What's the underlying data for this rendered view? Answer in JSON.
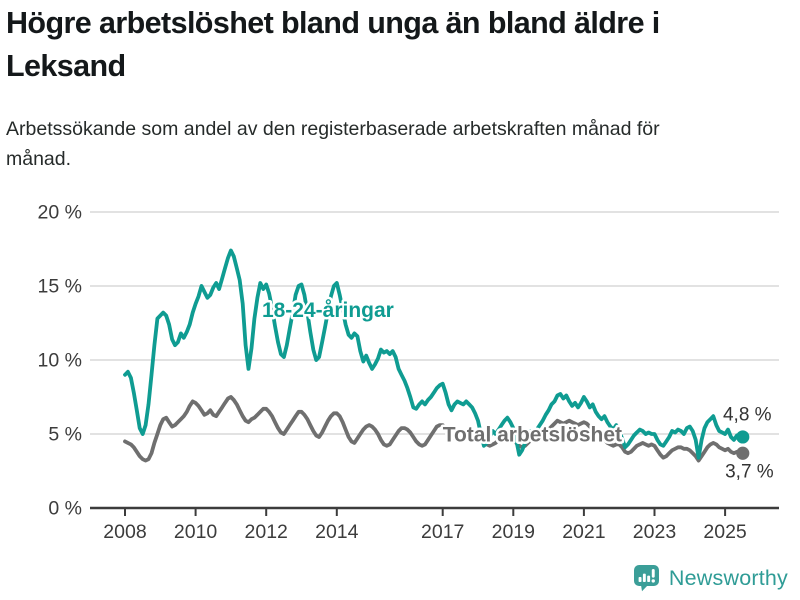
{
  "header": {
    "title": "Högre arbetslöshet bland unga än bland äldre i Leksand",
    "subtitle": "Arbetssökande som andel av den registerbaserade arbetskraften månad för månad."
  },
  "footer": {
    "brand": "Newsworthy"
  },
  "colors": {
    "young": "#0f9c92",
    "total": "#6f6f6f",
    "axis": "#3c3c3c",
    "grid": "#d9d9d9",
    "value_text": "#333333",
    "brand": "#2f9c96"
  },
  "chart_data": {
    "type": "line",
    "title": "Högre arbetslöshet bland unga än bland äldre i Leksand",
    "subtitle": "Arbetssökande som andel av den registerbaserade arbetskraften månad för månad.",
    "x_unit": "month",
    "x_start_year": 2008.0,
    "x_end_year": 2025.5,
    "ylim": [
      0,
      20
    ],
    "grid": "horizontal",
    "legend_position": "inline-annotations",
    "y_ticks": [
      0,
      5,
      10,
      15,
      20
    ],
    "y_tick_labels": [
      "0 %",
      "5 %",
      "10 %",
      "15 %",
      "20 %"
    ],
    "x_ticks": [
      2008,
      2010,
      2012,
      2014,
      2017,
      2019,
      2021,
      2023,
      2025
    ],
    "x_tick_labels": [
      "2008",
      "2010",
      "2012",
      "2014",
      "2017",
      "2019",
      "2021",
      "2023",
      "2025"
    ],
    "series": [
      {
        "name": "18-24-åringar",
        "color": "#0f9c92",
        "end_label": "4,8 %",
        "end_value": 4.8,
        "values": [
          9.0,
          9.2,
          8.8,
          7.8,
          6.6,
          5.4,
          5.0,
          5.6,
          7.0,
          9.0,
          11.0,
          12.8,
          13.0,
          13.2,
          13.0,
          12.4,
          11.4,
          11.0,
          11.2,
          11.8,
          11.5,
          11.9,
          12.4,
          13.2,
          13.8,
          14.3,
          15.0,
          14.6,
          14.2,
          14.4,
          14.9,
          15.2,
          14.8,
          15.5,
          16.2,
          16.9,
          17.4,
          17.0,
          16.2,
          15.4,
          13.8,
          11.0,
          9.4,
          10.8,
          12.8,
          14.2,
          15.2,
          14.8,
          15.1,
          14.5,
          13.5,
          12.3,
          11.2,
          10.4,
          10.2,
          11.0,
          12.1,
          13.2,
          14.4,
          15.0,
          15.1,
          14.4,
          13.2,
          11.9,
          10.7,
          10.0,
          10.2,
          11.2,
          12.2,
          13.3,
          14.3,
          15.0,
          15.2,
          14.4,
          13.4,
          12.4,
          11.7,
          11.5,
          11.8,
          11.6,
          10.6,
          9.9,
          10.3,
          9.8,
          9.4,
          9.7,
          10.1,
          10.7,
          10.5,
          10.6,
          10.4,
          10.6,
          10.2,
          9.4,
          9.0,
          8.6,
          8.1,
          7.5,
          6.8,
          6.7,
          7.0,
          7.2,
          7.0,
          7.3,
          7.5,
          7.8,
          8.1,
          8.3,
          8.4,
          7.8,
          7.0,
          6.6,
          7.0,
          7.2,
          7.1,
          7.0,
          7.2,
          7.0,
          6.8,
          6.4,
          5.9,
          5.0,
          4.2,
          4.4,
          4.8,
          5.2,
          5.0,
          5.3,
          5.6,
          5.9,
          6.1,
          5.8,
          5.4,
          4.6,
          3.6,
          3.9,
          4.4,
          4.8,
          5.2,
          5.0,
          5.3,
          5.6,
          5.9,
          6.3,
          6.6,
          7.0,
          7.2,
          7.6,
          7.7,
          7.4,
          7.6,
          7.2,
          6.9,
          7.1,
          6.8,
          7.1,
          7.5,
          7.2,
          6.8,
          7.0,
          6.5,
          6.2,
          6.0,
          6.2,
          5.8,
          5.5,
          5.3,
          5.6,
          5.2,
          4.7,
          4.1,
          4.3,
          4.6,
          4.9,
          5.1,
          5.3,
          5.2,
          5.0,
          5.1,
          5.0,
          5.0,
          4.6,
          4.3,
          4.2,
          4.5,
          4.8,
          5.2,
          5.1,
          5.3,
          5.2,
          5.0,
          5.4,
          5.5,
          5.2,
          4.6,
          3.4,
          4.6,
          5.4,
          5.8,
          6.0,
          6.2,
          5.6,
          5.2,
          5.1,
          5.0,
          5.3,
          4.8,
          4.6,
          4.9,
          4.7,
          4.8
        ]
      },
      {
        "name": "Total arbetslöshet",
        "color": "#6f6f6f",
        "end_label": "3,7 %",
        "end_value": 3.7,
        "values": [
          4.5,
          4.4,
          4.3,
          4.1,
          3.8,
          3.5,
          3.3,
          3.2,
          3.3,
          3.7,
          4.4,
          5.0,
          5.6,
          6.0,
          6.1,
          5.8,
          5.5,
          5.6,
          5.8,
          6.0,
          6.2,
          6.5,
          6.9,
          7.2,
          7.1,
          6.9,
          6.6,
          6.3,
          6.4,
          6.6,
          6.3,
          6.2,
          6.5,
          6.8,
          7.1,
          7.4,
          7.5,
          7.3,
          7.0,
          6.6,
          6.2,
          5.9,
          5.8,
          6.0,
          6.1,
          6.3,
          6.5,
          6.7,
          6.7,
          6.5,
          6.2,
          5.8,
          5.4,
          5.1,
          5.0,
          5.3,
          5.6,
          5.9,
          6.2,
          6.5,
          6.5,
          6.3,
          6.0,
          5.6,
          5.2,
          4.9,
          4.8,
          5.1,
          5.5,
          5.9,
          6.2,
          6.4,
          6.4,
          6.2,
          5.8,
          5.3,
          4.8,
          4.5,
          4.4,
          4.7,
          5.0,
          5.3,
          5.5,
          5.6,
          5.5,
          5.3,
          5.0,
          4.6,
          4.3,
          4.2,
          4.3,
          4.6,
          4.9,
          5.2,
          5.4,
          5.4,
          5.3,
          5.1,
          4.8,
          4.5,
          4.3,
          4.2,
          4.3,
          4.6,
          4.9,
          5.2,
          5.5,
          5.6,
          5.6,
          5.4,
          5.1,
          4.8,
          4.7,
          4.6,
          4.7,
          4.9,
          5.1,
          5.2,
          5.3,
          5.2,
          5.0,
          4.7,
          4.4,
          4.3,
          4.2,
          4.3,
          4.4,
          4.6,
          4.7,
          4.8,
          4.9,
          4.8,
          4.6,
          4.4,
          4.2,
          4.1,
          4.2,
          4.4,
          4.6,
          4.7,
          4.8,
          4.9,
          5.0,
          5.1,
          5.3,
          5.5,
          5.7,
          5.9,
          5.8,
          5.7,
          5.8,
          5.9,
          5.8,
          5.7,
          5.6,
          5.7,
          5.8,
          5.7,
          5.5,
          5.3,
          5.1,
          4.9,
          4.7,
          4.6,
          4.4,
          4.3,
          4.2,
          4.3,
          4.3,
          4.1,
          3.8,
          3.7,
          3.8,
          4.0,
          4.2,
          4.3,
          4.4,
          4.3,
          4.2,
          4.3,
          4.2,
          3.9,
          3.6,
          3.4,
          3.5,
          3.7,
          3.9,
          4.0,
          4.1,
          4.1,
          4.0,
          4.0,
          3.9,
          3.7,
          3.5,
          3.2,
          3.5,
          3.8,
          4.1,
          4.3,
          4.4,
          4.3,
          4.1,
          4.0,
          3.9,
          4.0,
          3.8,
          3.7,
          3.8,
          3.7,
          3.7
        ]
      }
    ],
    "annotations": [
      {
        "id": "young-series-label",
        "text": "18-24-åringar",
        "x_year": 2011.88,
        "y_pct": 12.9,
        "color": "#0f9c92",
        "class": "ann-series"
      },
      {
        "id": "total-series-label",
        "text": "Total arbetslöshet",
        "x_year": 2017.0,
        "y_pct": 4.5,
        "color": "#6f6f6f",
        "class": "ann-series"
      },
      {
        "id": "young-end-value",
        "text": "4,8 %",
        "x_year": 2024.94,
        "y_pct": 5.9,
        "color": "#333333",
        "class": "ann-value"
      },
      {
        "id": "total-end-value",
        "text": "3,7 %",
        "x_year": 2025.0,
        "y_pct": 2.05,
        "color": "#333333",
        "class": "ann-value"
      }
    ]
  }
}
